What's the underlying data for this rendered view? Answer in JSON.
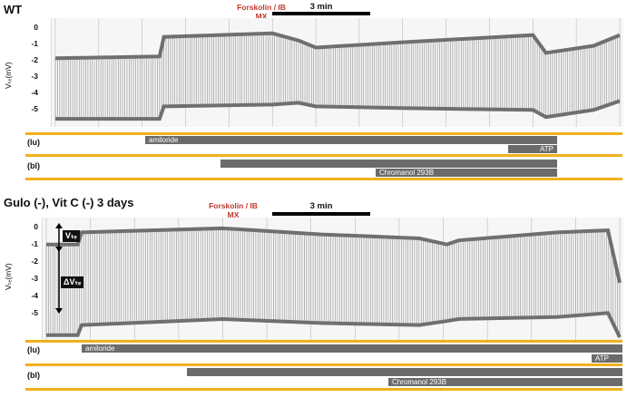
{
  "panels": [
    {
      "title": "WT",
      "marker_label": "Forskolin / IBMX",
      "marker_label_lines": [
        "Forskolin / IB",
        "MX"
      ],
      "scalebar_label": "3 min",
      "ylabel": "Vₜₑ(mV)",
      "yticks": [
        "0",
        "-1",
        "-2",
        "-3",
        "-4",
        "-5"
      ],
      "channels": [
        {
          "label": "(lu)",
          "drugs": [
            {
              "label": "amiloride"
            },
            {
              "label": "ATP"
            }
          ]
        },
        {
          "label": "(bl)",
          "drugs": [
            {
              "label": ""
            },
            {
              "label": "Chromanol 293B"
            }
          ]
        }
      ]
    },
    {
      "title": "Gulo (-), Vit C (-) 3 days",
      "marker_label": "Forskolin / IBMX",
      "marker_label_lines": [
        "Forskolin / IB",
        "MX"
      ],
      "scalebar_label": "3 min",
      "ylabel": "Vₜₑ(mV)",
      "yticks": [
        "0",
        "-1",
        "-2",
        "-3",
        "-4",
        "-5"
      ],
      "callouts": {
        "vte": "Vₜₑ",
        "dvte": "ΔVₜₑ"
      },
      "channels": [
        {
          "label": "(lu)",
          "drugs": [
            {
              "label": "amiloride"
            },
            {
              "label": "ATP"
            }
          ]
        },
        {
          "label": "(bl)",
          "drugs": [
            {
              "label": ""
            },
            {
              "label": "Chromanol 293B"
            }
          ]
        }
      ]
    }
  ],
  "colors": {
    "marker": "#d9342b",
    "drug_bar": "#6b6b6b",
    "channel_line": "#f2b01e",
    "trace": "#6f6f6f"
  },
  "chart_data": [
    {
      "type": "line",
      "title": "WT",
      "ylabel": "Vte(mV)",
      "ylim": [
        -5.5,
        0.3
      ],
      "x_unit": "min",
      "series": [
        {
          "name": "upper envelope",
          "x": [
            0,
            2.4,
            2.5,
            5.0,
            5.6,
            6.0,
            8.0,
            11.0,
            11.3,
            12.4,
            13.0
          ],
          "values": [
            -1.8,
            -1.7,
            -0.6,
            -0.4,
            -0.8,
            -1.2,
            -0.9,
            -0.5,
            -1.5,
            -1.1,
            -0.5
          ]
        },
        {
          "name": "lower envelope",
          "x": [
            0,
            2.4,
            2.5,
            5.0,
            5.6,
            6.0,
            8.0,
            11.0,
            11.3,
            12.4,
            13.0
          ],
          "values": [
            -5.2,
            -5.2,
            -4.5,
            -4.4,
            -4.3,
            -4.5,
            -4.6,
            -4.7,
            -5.1,
            -4.7,
            -4.2
          ]
        }
      ],
      "events": [
        {
          "label": "Forskolin / IBMX",
          "x": 5.6
        },
        {
          "label": "amiloride",
          "x": 2.5
        },
        {
          "label": "Chromanol 293B",
          "x": 9.0
        },
        {
          "label": "ATP",
          "x": 12.4
        }
      ]
    },
    {
      "type": "line",
      "title": "Gulo (-), Vit C (-) 3 days",
      "ylabel": "Vte(mV)",
      "ylim": [
        -5.5,
        0.3
      ],
      "x_unit": "min",
      "series": [
        {
          "name": "upper envelope",
          "x": [
            0,
            0.8,
            0.9,
            4.5,
            7.0,
            9.5,
            10.2,
            10.5,
            13.0,
            14.3,
            14.6
          ],
          "values": [
            -0.9,
            -0.9,
            -0.3,
            -0.1,
            -0.4,
            -0.6,
            -0.9,
            -0.7,
            -0.3,
            -0.2,
            -2.8
          ]
        },
        {
          "name": "lower envelope",
          "x": [
            0,
            0.8,
            0.9,
            4.5,
            7.0,
            9.5,
            10.2,
            10.5,
            13.0,
            14.3,
            14.6
          ],
          "values": [
            -5.4,
            -5.4,
            -4.9,
            -4.6,
            -4.8,
            -4.9,
            -4.7,
            -4.6,
            -4.5,
            -4.3,
            -5.5
          ]
        }
      ],
      "events": [
        {
          "label": "amiloride",
          "x": 0.9
        },
        {
          "label": "Forskolin / IBMX",
          "x": 4.5
        },
        {
          "label": "Chromanol 293B",
          "x": 9.8
        },
        {
          "label": "ATP",
          "x": 14.0
        }
      ]
    }
  ]
}
